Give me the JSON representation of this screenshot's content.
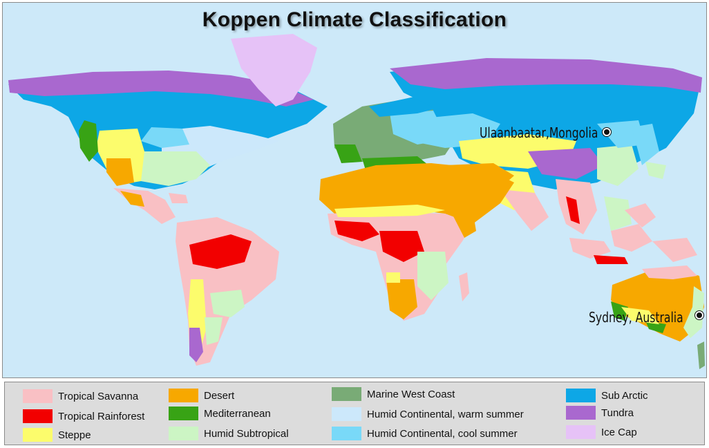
{
  "title": "Koppen Climate Classification",
  "cities": [
    {
      "name": "Ulaanbaatar,Mongolia"
    },
    {
      "name": "Sydney, Australia"
    }
  ],
  "legend": [
    {
      "label": "Tropical Savanna",
      "color": "#f9c0c4"
    },
    {
      "label": "Tropical Rainforest",
      "color": "#f20000"
    },
    {
      "label": "Steppe",
      "color": "#fcfc6c"
    },
    {
      "label": "Desert",
      "color": "#f7a800"
    },
    {
      "label": "Mediterranean",
      "color": "#38a315"
    },
    {
      "label": "Humid Subtropical",
      "color": "#ccf5c4"
    },
    {
      "label": "Marine West Coast",
      "color": "#79ab76"
    },
    {
      "label": "Humid Continental, warm summer",
      "color": "#cce8fb"
    },
    {
      "label": "Humid Continental, cool summer",
      "color": "#79d9f8"
    },
    {
      "label": "Sub Arctic",
      "color": "#0da7e6"
    },
    {
      "label": "Tundra",
      "color": "#a968cf"
    },
    {
      "label": "Ice Cap",
      "color": "#e6c2f7"
    }
  ],
  "colors": {
    "ocean": "#cde9f9",
    "legend_background": "#dcdcdc"
  }
}
